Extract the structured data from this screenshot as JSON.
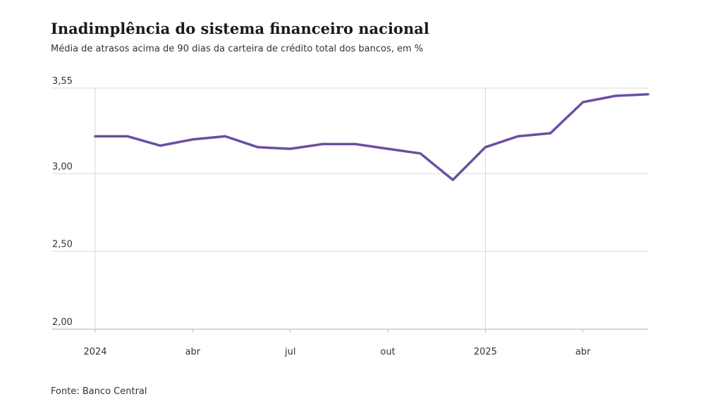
{
  "header": {
    "title": "Inadimplência do sistema financeiro nacional",
    "subtitle": "Média de atrasos acima de 90 dias da carteira de crédito total dos bancos, em %"
  },
  "footer": {
    "source": "Fonte: Banco Central"
  },
  "chart_data": {
    "type": "line",
    "title": "Inadimplência do sistema financeiro nacional",
    "subtitle": "Média de atrasos acima de 90 dias da carteira de crédito total dos bancos, em %",
    "x": [
      "2024-01",
      "2024-02",
      "2024-03",
      "2024-04",
      "2024-05",
      "2024-06",
      "2024-07",
      "2024-08",
      "2024-09",
      "2024-10",
      "2024-11",
      "2024-12",
      "2025-01",
      "2025-02",
      "2025-03",
      "2025-04",
      "2025-05",
      "2025-06"
    ],
    "series": [
      {
        "values": [
          3.24,
          3.24,
          3.18,
          3.22,
          3.24,
          3.17,
          3.16,
          3.19,
          3.19,
          3.16,
          3.13,
          2.96,
          3.17,
          3.24,
          3.26,
          3.46,
          3.5,
          3.51
        ]
      }
    ],
    "ylim": [
      2.0,
      3.55
    ],
    "y_ticks": [
      {
        "value": 2.0,
        "label": "2,00"
      },
      {
        "value": 2.5,
        "label": "2,50"
      },
      {
        "value": 3.0,
        "label": "3,00"
      },
      {
        "value": 3.55,
        "label": "3,55"
      }
    ],
    "x_ticks": [
      {
        "index": 0,
        "label": "2024"
      },
      {
        "index": 3,
        "label": "abr"
      },
      {
        "index": 6,
        "label": "jul"
      },
      {
        "index": 9,
        "label": "out"
      },
      {
        "index": 12,
        "label": "2025"
      },
      {
        "index": 15,
        "label": "abr"
      }
    ],
    "vertical_gridlines_at": [
      0,
      12
    ],
    "grid": true,
    "colors": {
      "line": "#6b4fa0",
      "grid": "#d9d9d9",
      "axis": "#bfbfbf"
    }
  }
}
